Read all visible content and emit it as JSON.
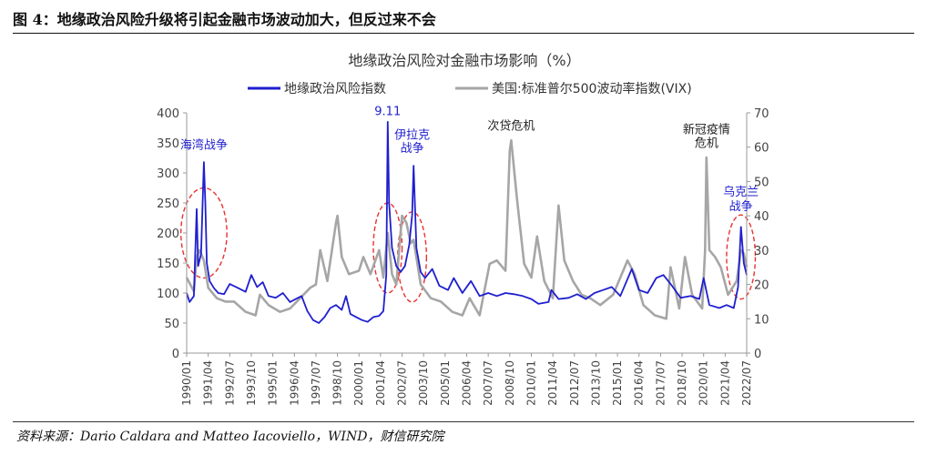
{
  "figure": {
    "title": "图 4：地缘政治风险升级将引起金融市场波动加大，但反过来不会",
    "source": "资料来源：Dario Caldara and Matteo Iacoviello，WIND，财信研究院"
  },
  "chart_data": {
    "type": "line",
    "title": "地缘政治风险对金融市场影响（%）",
    "legend_position": "top",
    "grid": false,
    "x_labels": [
      "1990/01",
      "1991/04",
      "1992/07",
      "1993/10",
      "1995/01",
      "1996/04",
      "1997/07",
      "1998/10",
      "2000/01",
      "2001/04",
      "2002/07",
      "2003/10",
      "2005/01",
      "2006/04",
      "2007/07",
      "2008/10",
      "2010/01",
      "2011/04",
      "2012/07",
      "2013/10",
      "2015/01",
      "2016/04",
      "2017/07",
      "2018/10",
      "2020/01",
      "2021/04",
      "2022/07"
    ],
    "x_range": [
      "1990/01",
      "2022/07"
    ],
    "y_left": {
      "range": [
        0,
        400
      ],
      "ticks": [
        "0",
        "50",
        "100",
        "150",
        "200",
        "250",
        "300",
        "350",
        "400"
      ]
    },
    "y_right": {
      "range": [
        0,
        70
      ],
      "ticks": [
        "0",
        "10",
        "20",
        "30",
        "40",
        "50",
        "60",
        "70"
      ]
    },
    "series": [
      {
        "name": "地缘政治风险指数",
        "axis": "left",
        "color": "#1f1fcf",
        "points": [
          [
            "1990/01",
            100
          ],
          [
            "1990/03",
            85
          ],
          [
            "1990/06",
            95
          ],
          [
            "1990/08",
            240
          ],
          [
            "1990/09",
            145
          ],
          [
            "1990/11",
            165
          ],
          [
            "1991/01",
            318
          ],
          [
            "1991/02",
            250
          ],
          [
            "1991/03",
            150
          ],
          [
            "1991/05",
            120
          ],
          [
            "1991/08",
            108
          ],
          [
            "1991/11",
            100
          ],
          [
            "1992/03",
            98
          ],
          [
            "1992/07",
            115
          ],
          [
            "1993/01",
            108
          ],
          [
            "1993/06",
            102
          ],
          [
            "1993/10",
            130
          ],
          [
            "1994/02",
            110
          ],
          [
            "1994/06",
            118
          ],
          [
            "1994/10",
            95
          ],
          [
            "1995/03",
            92
          ],
          [
            "1995/08",
            100
          ],
          [
            "1996/01",
            85
          ],
          [
            "1996/05",
            90
          ],
          [
            "1996/09",
            95
          ],
          [
            "1997/01",
            70
          ],
          [
            "1997/05",
            55
          ],
          [
            "1997/09",
            50
          ],
          [
            "1998/01",
            60
          ],
          [
            "1998/05",
            75
          ],
          [
            "1998/09",
            80
          ],
          [
            "1999/01",
            72
          ],
          [
            "1999/04",
            95
          ],
          [
            "1999/07",
            65
          ],
          [
            "1999/11",
            60
          ],
          [
            "2000/03",
            55
          ],
          [
            "2000/07",
            52
          ],
          [
            "2000/11",
            60
          ],
          [
            "2001/03",
            62
          ],
          [
            "2001/06",
            70
          ],
          [
            "2001/08",
            130
          ],
          [
            "2001/09",
            385
          ],
          [
            "2001/10",
            250
          ],
          [
            "2001/12",
            175
          ],
          [
            "2002/03",
            145
          ],
          [
            "2002/06",
            135
          ],
          [
            "2002/09",
            145
          ],
          [
            "2002/12",
            180
          ],
          [
            "2003/02",
            230
          ],
          [
            "2003/03",
            312
          ],
          [
            "2003/05",
            175
          ],
          [
            "2003/08",
            135
          ],
          [
            "2003/11",
            125
          ],
          [
            "2004/04",
            140
          ],
          [
            "2004/09",
            112
          ],
          [
            "2005/03",
            105
          ],
          [
            "2005/07",
            125
          ],
          [
            "2006/01",
            100
          ],
          [
            "2006/07",
            120
          ],
          [
            "2007/01",
            95
          ],
          [
            "2007/07",
            100
          ],
          [
            "2008/01",
            95
          ],
          [
            "2008/07",
            100
          ],
          [
            "2009/01",
            98
          ],
          [
            "2009/07",
            95
          ],
          [
            "2010/01",
            90
          ],
          [
            "2010/06",
            82
          ],
          [
            "2011/01",
            85
          ],
          [
            "2011/03",
            105
          ],
          [
            "2011/08",
            90
          ],
          [
            "2012/03",
            92
          ],
          [
            "2012/09",
            98
          ],
          [
            "2013/03",
            90
          ],
          [
            "2013/09",
            100
          ],
          [
            "2014/03",
            105
          ],
          [
            "2014/09",
            110
          ],
          [
            "2015/03",
            95
          ],
          [
            "2015/11",
            140
          ],
          [
            "2016/04",
            105
          ],
          [
            "2016/10",
            100
          ],
          [
            "2017/04",
            125
          ],
          [
            "2017/09",
            130
          ],
          [
            "2018/03",
            112
          ],
          [
            "2018/09",
            92
          ],
          [
            "2019/04",
            95
          ],
          [
            "2019/10",
            90
          ],
          [
            "2020/01",
            125
          ],
          [
            "2020/05",
            80
          ],
          [
            "2020/12",
            75
          ],
          [
            "2021/05",
            80
          ],
          [
            "2021/10",
            75
          ],
          [
            "2022/01",
            110
          ],
          [
            "2022/03",
            210
          ],
          [
            "2022/05",
            150
          ],
          [
            "2022/07",
            130
          ]
        ]
      },
      {
        "name": "美国:标准普尔500波动率指数(VIX)",
        "axis": "right",
        "color": "#a6a6a6",
        "points": [
          [
            "1990/01",
            22
          ],
          [
            "1990/06",
            18
          ],
          [
            "1990/08",
            28
          ],
          [
            "1990/10",
            30
          ],
          [
            "1991/01",
            27
          ],
          [
            "1991/04",
            19
          ],
          [
            "1991/10",
            16
          ],
          [
            "1992/04",
            15
          ],
          [
            "1992/10",
            15
          ],
          [
            "1993/06",
            12
          ],
          [
            "1994/01",
            11
          ],
          [
            "1994/04",
            17
          ],
          [
            "1994/10",
            14
          ],
          [
            "1995/06",
            12
          ],
          [
            "1996/01",
            13
          ],
          [
            "1996/08",
            16
          ],
          [
            "1997/03",
            19
          ],
          [
            "1997/07",
            20
          ],
          [
            "1997/10",
            30
          ],
          [
            "1998/03",
            21
          ],
          [
            "1998/09",
            38
          ],
          [
            "1998/10",
            40
          ],
          [
            "1999/01",
            28
          ],
          [
            "1999/06",
            23
          ],
          [
            "2000/01",
            24
          ],
          [
            "2000/04",
            28
          ],
          [
            "2000/09",
            23
          ],
          [
            "2001/03",
            30
          ],
          [
            "2001/06",
            22
          ],
          [
            "2001/09",
            35
          ],
          [
            "2001/12",
            23
          ],
          [
            "2002/03",
            20
          ],
          [
            "2002/07",
            40
          ],
          [
            "2002/10",
            38
          ],
          [
            "2003/01",
            32
          ],
          [
            "2003/03",
            33
          ],
          [
            "2003/08",
            20
          ],
          [
            "2004/03",
            16
          ],
          [
            "2004/10",
            15
          ],
          [
            "2005/06",
            12
          ],
          [
            "2006/01",
            11
          ],
          [
            "2006/06",
            16
          ],
          [
            "2007/01",
            11
          ],
          [
            "2007/08",
            26
          ],
          [
            "2008/01",
            27
          ],
          [
            "2008/07",
            24
          ],
          [
            "2008/10",
            59
          ],
          [
            "2008/11",
            62
          ],
          [
            "2009/03",
            45
          ],
          [
            "2009/08",
            26
          ],
          [
            "2010/01",
            22
          ],
          [
            "2010/05",
            34
          ],
          [
            "2010/10",
            21
          ],
          [
            "2011/04",
            16
          ],
          [
            "2011/08",
            43
          ],
          [
            "2011/12",
            27
          ],
          [
            "2012/06",
            21
          ],
          [
            "2012/12",
            17
          ],
          [
            "2013/06",
            16
          ],
          [
            "2014/01",
            14
          ],
          [
            "2014/10",
            17
          ],
          [
            "2015/08",
            27
          ],
          [
            "2016/01",
            23
          ],
          [
            "2016/07",
            14
          ],
          [
            "2017/03",
            11
          ],
          [
            "2017/11",
            10
          ],
          [
            "2018/02",
            25
          ],
          [
            "2018/08",
            13
          ],
          [
            "2018/12",
            28
          ],
          [
            "2019/05",
            17
          ],
          [
            "2019/12",
            13
          ],
          [
            "2020/02",
            30
          ],
          [
            "2020/03",
            57
          ],
          [
            "2020/05",
            30
          ],
          [
            "2020/09",
            28
          ],
          [
            "2021/01",
            25
          ],
          [
            "2021/06",
            17
          ],
          [
            "2021/12",
            21
          ],
          [
            "2022/03",
            30
          ],
          [
            "2022/05",
            29
          ],
          [
            "2022/07",
            25
          ]
        ]
      }
    ],
    "annotations": [
      {
        "text": "海湾战争",
        "color": "#1f1fcf",
        "x": "1991/01",
        "y_left": 340,
        "align": "middle"
      },
      {
        "text": "9.11",
        "color": "#1f1fcf",
        "x": "2001/09",
        "y_left": 396,
        "align": "middle"
      },
      {
        "text": "伊拉克",
        "color": "#1f1fcf",
        "x": "2003/02",
        "y_left": 357,
        "align": "middle"
      },
      {
        "text": "战争",
        "color": "#1f1fcf",
        "x": "2003/02",
        "y_left": 335,
        "align": "middle"
      },
      {
        "text": "次贷危机",
        "color": "#222222",
        "x": "2008/11",
        "y_left": 372,
        "align": "middle"
      },
      {
        "text": "新冠疫情",
        "color": "#222222",
        "x": "2020/03",
        "y_left": 366,
        "align": "middle"
      },
      {
        "text": "危机",
        "color": "#222222",
        "x": "2020/03",
        "y_left": 343,
        "align": "middle"
      },
      {
        "text": "乌克兰",
        "color": "#1f1fcf",
        "x": "2022/03",
        "y_left": 262,
        "align": "middle"
      },
      {
        "text": "战争",
        "color": "#1f1fcf",
        "x": "2022/03",
        "y_left": 238,
        "align": "middle"
      }
    ],
    "highlight_ellipses": [
      {
        "label": "海湾战争",
        "center_x": "1991/01",
        "center_y_left": 200,
        "rx_months": 16,
        "ry_left": 75
      },
      {
        "label": "9.11",
        "center_x": "2001/09",
        "center_y_left": 175,
        "rx_months": 10,
        "ry_left": 75
      },
      {
        "label": "伊拉克战争",
        "center_x": "2003/02",
        "center_y_left": 160,
        "rx_months": 10,
        "ry_left": 75
      },
      {
        "label": "乌克兰战争",
        "center_x": "2022/03",
        "center_y_left": 160,
        "rx_months": 10,
        "ry_left": 70
      }
    ]
  }
}
